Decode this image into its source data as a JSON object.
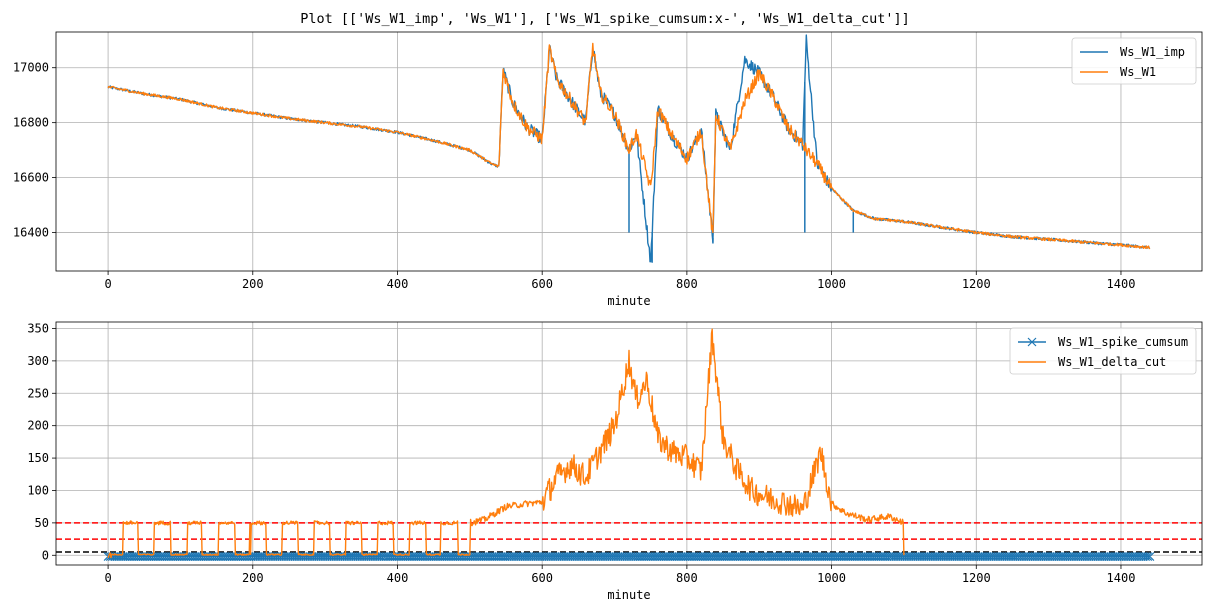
{
  "figure_title": "Plot [['Ws_W1_imp', 'Ws_W1'], ['Ws_W1_spike_cumsum:x-', 'Ws_W1_delta_cut']]",
  "chart_data": [
    {
      "type": "line",
      "xlabel": "minute",
      "ylabel": "",
      "xlim": [
        -72,
        1512
      ],
      "ylim": [
        16260,
        17130
      ],
      "xticks": [
        0,
        200,
        400,
        600,
        800,
        1000,
        1200,
        1400
      ],
      "yticks": [
        16400,
        16600,
        16800,
        17000
      ],
      "grid": true,
      "legend_position": "top-right",
      "series": [
        {
          "name": "Ws_W1_imp",
          "color": "#1f77b4",
          "style": "solid",
          "x": [
            0,
            50,
            100,
            150,
            200,
            250,
            300,
            350,
            400,
            450,
            500,
            530,
            540,
            546,
            560,
            580,
            600,
            610,
            620,
            640,
            660,
            670,
            680,
            700,
            720,
            730,
            750,
            760,
            780,
            800,
            820,
            836,
            840,
            860,
            880,
            900,
            920,
            940,
            960,
            965,
            980,
            1000,
            1030,
            1060,
            1100,
            1150,
            1200,
            1250,
            1300,
            1350,
            1400,
            1440
          ],
          "values": [
            16930,
            16905,
            16885,
            16855,
            16835,
            16815,
            16800,
            16785,
            16765,
            16735,
            16700,
            16650,
            16640,
            16990,
            16870,
            16780,
            16740,
            17070,
            16960,
            16880,
            16800,
            17080,
            16910,
            16830,
            16700,
            16760,
            16290,
            16850,
            16750,
            16670,
            16770,
            16380,
            16830,
            16700,
            17030,
            16980,
            16890,
            16780,
            16720,
            17100,
            16650,
            16560,
            16480,
            16450,
            16440,
            16420,
            16400,
            16385,
            16375,
            16365,
            16355,
            16345
          ],
          "spikes": [
            {
              "x": 720,
              "value": 16400
            },
            {
              "x": 752,
              "value": 16290
            },
            {
              "x": 836,
              "value": 16360
            },
            {
              "x": 882,
              "value": 17030
            },
            {
              "x": 965,
              "value": 17100
            },
            {
              "x": 963,
              "value": 16400
            },
            {
              "x": 1030,
              "value": 16400
            }
          ]
        },
        {
          "name": "Ws_W1",
          "color": "#ff7f0e",
          "style": "solid",
          "x": [
            0,
            50,
            100,
            150,
            200,
            250,
            300,
            350,
            400,
            450,
            500,
            530,
            540,
            546,
            560,
            580,
            600,
            610,
            620,
            640,
            660,
            670,
            680,
            700,
            720,
            730,
            750,
            760,
            780,
            800,
            820,
            836,
            840,
            860,
            880,
            900,
            920,
            940,
            960,
            965,
            980,
            1000,
            1030,
            1060,
            1100,
            1150,
            1200,
            1250,
            1300,
            1350,
            1400,
            1440
          ],
          "values": [
            16930,
            16905,
            16885,
            16855,
            16835,
            16815,
            16800,
            16785,
            16765,
            16735,
            16700,
            16650,
            16640,
            16990,
            16870,
            16780,
            16740,
            17070,
            16960,
            16880,
            16800,
            17080,
            16910,
            16830,
            16700,
            16760,
            16560,
            16850,
            16750,
            16670,
            16770,
            16380,
            16830,
            16700,
            16880,
            16980,
            16890,
            16780,
            16720,
            16700,
            16650,
            16560,
            16480,
            16450,
            16440,
            16420,
            16400,
            16385,
            16375,
            16365,
            16355,
            16345
          ]
        }
      ]
    },
    {
      "type": "line",
      "xlabel": "minute",
      "ylabel": "",
      "xlim": [
        -72,
        1512
      ],
      "ylim": [
        -15,
        360
      ],
      "xticks": [
        0,
        200,
        400,
        600,
        800,
        1000,
        1200,
        1400
      ],
      "yticks": [
        0,
        50,
        100,
        150,
        200,
        250,
        300,
        350
      ],
      "grid": true,
      "legend_position": "top-right",
      "series": [
        {
          "name": "Ws_W1_spike_cumsum",
          "color": "#1f77b4",
          "style": "x-",
          "x_range": [
            0,
            1440
          ],
          "value": -2
        },
        {
          "name": "Ws_W1_delta_cut",
          "color": "#ff7f0e",
          "style": "solid",
          "x": [
            0,
            500,
            520,
            550,
            580,
            600,
            620,
            640,
            660,
            680,
            700,
            720,
            730,
            745,
            760,
            780,
            800,
            820,
            835,
            850,
            870,
            890,
            910,
            940,
            960,
            985,
            1000,
            1020,
            1050,
            1080,
            1100
          ],
          "values": [
            0,
            50,
            55,
            75,
            80,
            82,
            120,
            140,
            120,
            160,
            200,
            300,
            240,
            270,
            180,
            160,
            150,
            130,
            340,
            180,
            130,
            100,
            90,
            80,
            70,
            160,
            80,
            65,
            55,
            60,
            50
          ],
          "toggle_low": 0,
          "toggle_high": 50,
          "toggle_ranges": [
            [
              5,
              500
            ],
            [
              1100,
              1440
            ]
          ]
        }
      ],
      "reference_lines": [
        {
          "y": 50,
          "color": "#ff0000",
          "style": "dashed"
        },
        {
          "y": 25,
          "color": "#ff0000",
          "style": "dashed"
        },
        {
          "y": 5,
          "color": "#000000",
          "style": "dashed"
        }
      ]
    }
  ]
}
